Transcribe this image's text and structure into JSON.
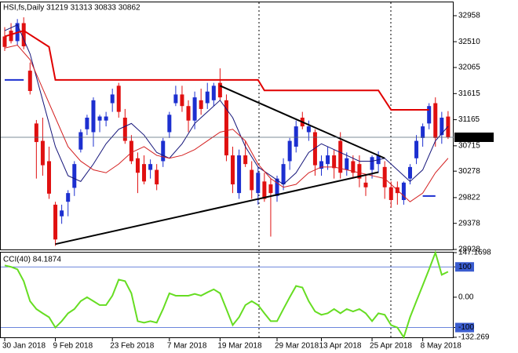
{
  "chart_data": [
    {
      "type": "candlestick",
      "title": "HSI,fs,Daily  31219 31313 30833 30862",
      "categories": [
        "30 Jan 2018",
        null,
        null,
        null,
        null,
        null,
        null,
        null,
        "9 Feb 2018",
        null,
        null,
        null,
        null,
        null,
        null,
        null,
        null,
        "23 Feb 2018",
        null,
        null,
        null,
        null,
        null,
        null,
        null,
        null,
        "7 Mar 2018",
        null,
        null,
        null,
        null,
        null,
        null,
        null,
        "19 Mar 2018",
        null,
        null,
        null,
        null,
        null,
        null,
        null,
        null,
        "29 Mar 2018",
        null,
        null,
        null,
        null,
        null,
        null,
        "13 Apr 2018",
        null,
        null,
        null,
        null,
        null,
        null,
        null,
        "25 Apr 2018",
        null,
        null,
        null,
        null,
        null,
        null,
        null,
        "8 May 2018",
        null,
        null,
        null,
        null
      ],
      "open": [
        32600,
        32700,
        32520,
        32830,
        32010,
        31100,
        30800,
        30450,
        29700,
        29500,
        29750,
        29990,
        30650,
        31000,
        30950,
        31150,
        31150,
        31450,
        31750,
        31200,
        30800,
        30500,
        30400,
        30300,
        30300,
        30450,
        30950,
        31450,
        31600,
        31400,
        31150,
        31500,
        31450,
        31500,
        31800,
        31500,
        30550,
        29900,
        30550,
        30300,
        29900,
        30100,
        30050,
        29850,
        30050,
        30450,
        30700,
        31200,
        30950,
        30950,
        30320,
        30400,
        30550,
        30800,
        30300,
        30450,
        30400,
        30080,
        30300,
        30400,
        30350,
        30000,
        30000,
        29780,
        30150,
        30500,
        30850,
        31100,
        31450,
        30900,
        31219
      ],
      "high": [
        32760,
        32830,
        32900,
        32930,
        32150,
        31160,
        31200,
        30700,
        29750,
        29700,
        29950,
        30450,
        31000,
        31250,
        31550,
        31250,
        31300,
        31700,
        31800,
        31350,
        30900,
        30600,
        30550,
        30480,
        30400,
        30850,
        31300,
        31750,
        31750,
        31500,
        31650,
        31700,
        31800,
        31800,
        32050,
        31600,
        30700,
        30650,
        30800,
        30450,
        30350,
        30250,
        30150,
        30200,
        30500,
        30850,
        31150,
        31300,
        31150,
        31000,
        30550,
        30700,
        30650,
        30950,
        30600,
        30550,
        30550,
        30200,
        30550,
        30620,
        30450,
        30100,
        30100,
        30100,
        30400,
        30900,
        31100,
        31450,
        31550,
        31300,
        31313
      ],
      "low": [
        32350,
        32480,
        32450,
        32380,
        31600,
        30150,
        30200,
        29800,
        28990,
        29370,
        29500,
        29850,
        30600,
        30900,
        30700,
        30950,
        31050,
        31300,
        31200,
        30750,
        30400,
        29900,
        30050,
        30150,
        29950,
        30350,
        30850,
        31400,
        31300,
        30950,
        31000,
        31250,
        31350,
        31400,
        31500,
        30450,
        29900,
        29800,
        30350,
        29800,
        29700,
        29750,
        29150,
        29750,
        29950,
        30300,
        30600,
        31000,
        30800,
        30200,
        30200,
        30300,
        30150,
        30150,
        30200,
        30150,
        30000,
        29850,
        30150,
        30250,
        29800,
        29650,
        29700,
        29700,
        30050,
        30400,
        30700,
        31000,
        30700,
        30750,
        30833
      ],
      "close": [
        32420,
        32520,
        32830,
        32430,
        31660,
        30780,
        30380,
        29890,
        29100,
        29600,
        29900,
        30400,
        30950,
        31200,
        31500,
        31220,
        31220,
        31600,
        31300,
        30800,
        30450,
        30250,
        30100,
        30400,
        30050,
        30800,
        31250,
        31600,
        31400,
        31150,
        31550,
        31350,
        31650,
        31750,
        31550,
        30550,
        30050,
        30550,
        30400,
        29950,
        30250,
        29800,
        29900,
        30150,
        30400,
        30800,
        31050,
        31050,
        31050,
        30380,
        30450,
        30550,
        30330,
        30250,
        30500,
        30250,
        30150,
        30000,
        30520,
        30550,
        30000,
        29780,
        29900,
        30080,
        30350,
        30800,
        31050,
        31400,
        30850,
        31200,
        30862
      ],
      "up_color": "#1c2fd0",
      "down_color": "#e01010",
      "ylim": [
        28928,
        33188
      ],
      "yticks": [
        32958,
        32510,
        32065,
        31615,
        31165,
        30715,
        30278,
        29822,
        29378,
        28928
      ],
      "last_price": 30862,
      "overlays": [
        {
          "color": "#15157a",
          "width": 1,
          "points": [
            [
              0,
              32700
            ],
            [
              2,
              32800
            ],
            [
              4,
              32300
            ],
            [
              6,
              31500
            ],
            [
              8,
              30700
            ],
            [
              10,
              30200
            ],
            [
              12,
              30100
            ],
            [
              14,
              30400
            ],
            [
              16,
              30750
            ],
            [
              18,
              31000
            ],
            [
              20,
              31100
            ],
            [
              22,
              30900
            ],
            [
              24,
              30600
            ],
            [
              26,
              30500
            ],
            [
              28,
              30750
            ],
            [
              30,
              31100
            ],
            [
              32,
              31300
            ],
            [
              34,
              31500
            ],
            [
              36,
              31200
            ],
            [
              38,
              30700
            ],
            [
              40,
              30350
            ],
            [
              42,
              30200
            ],
            [
              44,
              30050
            ],
            [
              46,
              30250
            ],
            [
              48,
              30600
            ],
            [
              50,
              30750
            ],
            [
              52,
              30650
            ],
            [
              54,
              30550
            ],
            [
              56,
              30450
            ],
            [
              58,
              30450
            ],
            [
              60,
              30500
            ],
            [
              62,
              30300
            ],
            [
              64,
              30100
            ],
            [
              66,
              30300
            ],
            [
              68,
              30800
            ],
            [
              70,
              31050
            ]
          ]
        },
        {
          "color": "#d42020",
          "width": 1,
          "points": [
            [
              0,
              32400
            ],
            [
              2,
              32450
            ],
            [
              4,
              32200
            ],
            [
              6,
              31700
            ],
            [
              8,
              31200
            ],
            [
              10,
              30700
            ],
            [
              12,
              30450
            ],
            [
              14,
              30300
            ],
            [
              16,
              30250
            ],
            [
              18,
              30400
            ],
            [
              20,
              30600
            ],
            [
              22,
              30700
            ],
            [
              24,
              30550
            ],
            [
              26,
              30500
            ],
            [
              28,
              30550
            ],
            [
              30,
              30650
            ],
            [
              32,
              30800
            ],
            [
              34,
              30950
            ],
            [
              36,
              31000
            ],
            [
              38,
              30800
            ],
            [
              40,
              30400
            ],
            [
              42,
              30150
            ],
            [
              44,
              30000
            ],
            [
              46,
              30050
            ],
            [
              48,
              30250
            ],
            [
              50,
              30350
            ],
            [
              52,
              30350
            ],
            [
              54,
              30300
            ],
            [
              56,
              30250
            ],
            [
              58,
              30200
            ],
            [
              60,
              30150
            ],
            [
              62,
              29950
            ],
            [
              64,
              29750
            ],
            [
              66,
              29900
            ],
            [
              68,
              30250
            ],
            [
              70,
              30500
            ]
          ]
        },
        {
          "color": "#e00000",
          "width": 2,
          "points": [
            [
              0,
              32600
            ],
            [
              3,
              32700
            ],
            [
              7,
              32420
            ],
            [
              8,
              31850
            ],
            [
              40,
              31850
            ],
            [
              41,
              31670
            ],
            [
              59,
              31670
            ],
            [
              61,
              31336
            ],
            [
              67,
              31336
            ]
          ]
        },
        {
          "color": "#000000",
          "width": 2,
          "points": [
            [
              34,
              31750
            ],
            [
              60,
              30500
            ]
          ]
        },
        {
          "color": "#000000",
          "width": 2,
          "points": [
            [
              8,
              29020
            ],
            [
              59,
              30260
            ]
          ]
        },
        {
          "color": "#1c2fd0",
          "width": 2,
          "points": [
            [
              0,
              31850
            ],
            [
              3,
              31850
            ]
          ]
        },
        {
          "color": "#1c2fd0",
          "width": 2,
          "points": [
            [
              66,
              29850
            ],
            [
              68,
              29850
            ]
          ]
        }
      ]
    },
    {
      "type": "line",
      "title": "CCI(40) 84.1874",
      "values": [
        105,
        100,
        92,
        53,
        -13,
        -39,
        -53,
        -66,
        -100,
        -79,
        -53,
        -39,
        -13,
        0,
        -13,
        -26,
        -26,
        5,
        58,
        53,
        13,
        -79,
        -84,
        -79,
        -84,
        -39,
        13,
        5,
        5,
        5,
        11,
        5,
        16,
        26,
        13,
        -39,
        -92,
        -66,
        -26,
        -13,
        -26,
        -53,
        -79,
        -79,
        -39,
        0,
        37,
        32,
        -13,
        -47,
        -58,
        -53,
        -39,
        -53,
        -39,
        -47,
        -39,
        -53,
        -79,
        -53,
        -58,
        -92,
        -100,
        -132.269,
        -66,
        -13,
        39,
        92,
        147.1698,
        74,
        84.1874
      ],
      "color": "#66dd22",
      "ylim": [
        -132.269,
        147.1698
      ],
      "yticks": [
        147.1698,
        100,
        {
          "value": 0,
          "label": "0.00"
        },
        -100,
        -132.269
      ],
      "levels": [
        100,
        -100
      ],
      "level_color": "#3a5ccf"
    }
  ]
}
